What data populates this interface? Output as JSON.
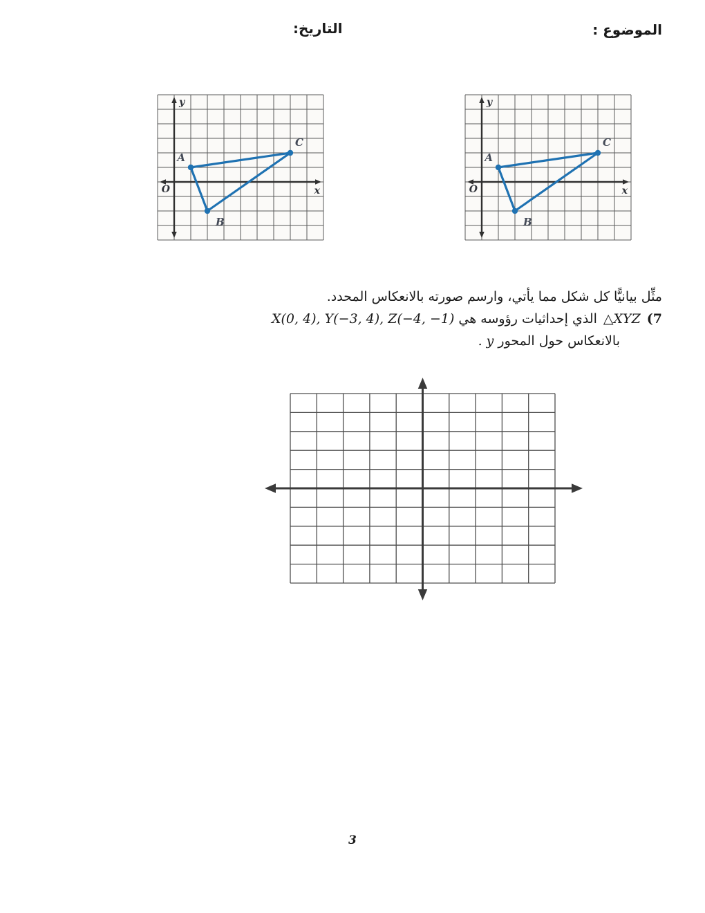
{
  "header": {
    "subject_label": "الموضوع :",
    "date_label": "التاريخ:"
  },
  "instructions": {
    "line1": "مثِّل بيانيًّا كل شكل مما يأتي، وارسم صورته بالانعكاس المحدد.",
    "item_number": "(7",
    "triangle_name": "△XYZ",
    "line2_arabic": "الذي إحداثيات رؤوسه هي",
    "line2_math": "X(0, 4), Y(−3, 4), Z(−4, −1)",
    "line3_arabic": "بالانعكاس حول المحور",
    "line3_math": "y",
    "line3_period": "."
  },
  "footer": {
    "page_number": "3"
  },
  "chart_data": [
    {
      "id": "left-graph",
      "type": "line",
      "title": "",
      "description": "Triangle ABC plotted on a coordinate grid, x-axis and y-axis with arrows",
      "grid": {
        "cols": 10,
        "rows": 10,
        "y_axis_col": 1,
        "x_axis_row": 6
      },
      "axis_labels": {
        "x": "x",
        "y": "y",
        "origin": "O"
      },
      "series": [
        {
          "name": "triangle-ABC",
          "closed": true,
          "color": "#1f72b2",
          "points": [
            {
              "label": "A",
              "x": 1,
              "y": 1,
              "label_pos": "top-left"
            },
            {
              "label": "B",
              "x": 2,
              "y": -2,
              "label_pos": "bottom-right"
            },
            {
              "label": "C",
              "x": 7,
              "y": 2,
              "label_pos": "top-right"
            }
          ]
        }
      ]
    },
    {
      "id": "right-graph",
      "type": "line",
      "title": "",
      "description": "Identical copy of the triangle ABC coordinate grid",
      "grid": {
        "cols": 10,
        "rows": 10,
        "y_axis_col": 1,
        "x_axis_row": 6
      },
      "axis_labels": {
        "x": "x",
        "y": "y",
        "origin": "O"
      },
      "series": [
        {
          "name": "triangle-ABC",
          "closed": true,
          "color": "#1f72b2",
          "points": [
            {
              "label": "A",
              "x": 1,
              "y": 1,
              "label_pos": "top-left"
            },
            {
              "label": "B",
              "x": 2,
              "y": -2,
              "label_pos": "bottom-right"
            },
            {
              "label": "C",
              "x": 7,
              "y": 2,
              "label_pos": "top-right"
            }
          ]
        }
      ]
    },
    {
      "id": "answer-grid",
      "type": "line",
      "title": "",
      "description": "Empty 10x10 coordinate grid with centered axes and arrows for drawing the reflection",
      "grid": {
        "cols": 10,
        "rows": 10,
        "y_axis_col": 5,
        "x_axis_row": 5
      },
      "axis_labels": null,
      "series": []
    }
  ]
}
